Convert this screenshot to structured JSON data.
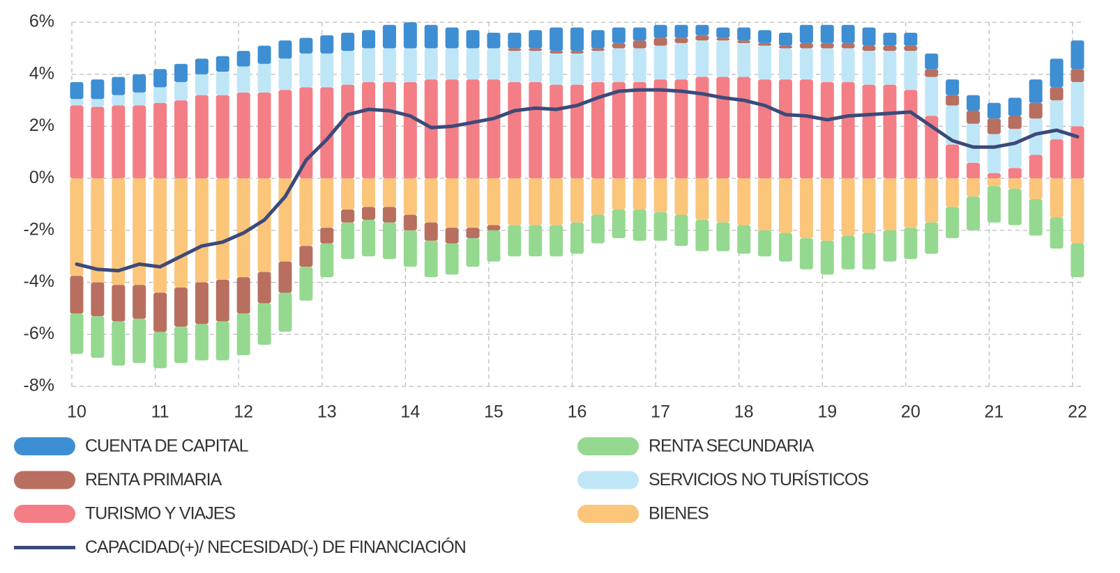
{
  "chart_data": {
    "type": "bar",
    "stacked": true,
    "categories": [
      "10",
      null,
      null,
      null,
      "11",
      null,
      null,
      null,
      "12",
      null,
      null,
      null,
      "13",
      null,
      null,
      null,
      "14",
      null,
      null,
      null,
      "15",
      null,
      null,
      null,
      "16",
      null,
      null,
      null,
      "17",
      null,
      null,
      null,
      "18",
      null,
      null,
      null,
      "19",
      null,
      null,
      null,
      "20",
      null,
      null,
      null,
      "21",
      null,
      null,
      null,
      "22"
    ],
    "ylim": [
      -8,
      6
    ],
    "yticks": [
      {
        "value": 6,
        "label": "6%"
      },
      {
        "value": 4,
        "label": "4%"
      },
      {
        "value": 2,
        "label": "2%"
      },
      {
        "value": 0,
        "label": "0%"
      },
      {
        "value": -2,
        "label": "-2%"
      },
      {
        "value": -4,
        "label": "-4%"
      },
      {
        "value": -6,
        "label": "-6%"
      },
      {
        "value": -8,
        "label": "-8%"
      }
    ],
    "grid": true,
    "series": [
      {
        "name": "CUENTA DE CAPITAL",
        "color": "#3e8ed3",
        "values": [
          0.65,
          0.75,
          0.7,
          0.7,
          0.7,
          0.7,
          0.6,
          0.6,
          0.6,
          0.7,
          0.7,
          0.6,
          0.7,
          0.7,
          0.7,
          0.9,
          1.0,
          0.9,
          0.8,
          0.7,
          0.6,
          0.6,
          0.7,
          0.9,
          0.9,
          0.7,
          0.6,
          0.5,
          0.5,
          0.5,
          0.4,
          0.4,
          0.5,
          0.5,
          0.5,
          0.7,
          0.7,
          0.7,
          0.7,
          0.5,
          0.5,
          0.6,
          0.6,
          0.6,
          0.6,
          0.7,
          0.9,
          1.1,
          1.1
        ]
      },
      {
        "name": "RENTA SECUNDARIA",
        "color": "#94d98f",
        "values": [
          -1.55,
          -1.6,
          -1.7,
          -1.7,
          -1.4,
          -1.4,
          -1.4,
          -1.5,
          -1.6,
          -1.6,
          -1.5,
          -1.3,
          -1.3,
          -1.4,
          -1.4,
          -1.4,
          -1.4,
          -1.4,
          -1.2,
          -1.1,
          -1.2,
          -1.2,
          -1.2,
          -1.2,
          -1.2,
          -1.1,
          -1.1,
          -1.2,
          -1.1,
          -1.2,
          -1.2,
          -1.1,
          -1.1,
          -1.0,
          -1.1,
          -1.2,
          -1.3,
          -1.3,
          -1.4,
          -1.2,
          -1.2,
          -1.2,
          -1.2,
          -1.3,
          -1.4,
          -1.4,
          -1.4,
          -1.2,
          -1.3
        ]
      },
      {
        "name": "RENTA PRIMARIA",
        "color": "#b86f60",
        "values": [
          -1.45,
          -1.3,
          -1.4,
          -1.3,
          -1.5,
          -1.5,
          -1.6,
          -1.6,
          -1.4,
          -1.2,
          -1.2,
          -0.8,
          -0.6,
          -0.5,
          -0.5,
          -0.6,
          -0.6,
          -0.7,
          -0.6,
          -0.4,
          -0.2,
          0.1,
          0.1,
          0.1,
          0.1,
          0.1,
          0.2,
          0.3,
          0.3,
          0.2,
          0.2,
          0.1,
          0.1,
          0.1,
          0.1,
          0.2,
          0.2,
          0.2,
          0.2,
          0.2,
          0.2,
          0.3,
          0.4,
          0.5,
          0.6,
          0.5,
          0.6,
          0.5,
          0.5
        ]
      },
      {
        "name": "SERVICIOS NO TURÍSTICOS",
        "color": "#bfe6f7",
        "values": [
          0.25,
          0.3,
          0.4,
          0.5,
          0.6,
          0.7,
          0.8,
          0.9,
          1.0,
          1.1,
          1.2,
          1.3,
          1.3,
          1.3,
          1.3,
          1.3,
          1.3,
          1.2,
          1.2,
          1.2,
          1.2,
          1.2,
          1.2,
          1.2,
          1.2,
          1.2,
          1.3,
          1.3,
          1.3,
          1.4,
          1.4,
          1.4,
          1.3,
          1.3,
          1.2,
          1.2,
          1.3,
          1.3,
          1.3,
          1.3,
          1.5,
          1.5,
          1.5,
          1.5,
          1.5,
          1.5,
          1.4,
          1.5,
          1.7
        ]
      },
      {
        "name": "TURISMO Y VIAJES",
        "color": "#f47e86",
        "values": [
          2.8,
          2.75,
          2.8,
          2.8,
          2.9,
          3.0,
          3.2,
          3.2,
          3.3,
          3.3,
          3.4,
          3.5,
          3.5,
          3.6,
          3.7,
          3.7,
          3.7,
          3.8,
          3.8,
          3.8,
          3.8,
          3.7,
          3.7,
          3.6,
          3.6,
          3.7,
          3.7,
          3.7,
          3.8,
          3.8,
          3.9,
          3.9,
          3.9,
          3.8,
          3.8,
          3.8,
          3.7,
          3.7,
          3.6,
          3.6,
          3.4,
          2.4,
          1.3,
          0.6,
          0.2,
          0.4,
          0.9,
          1.5,
          2.0
        ]
      },
      {
        "name": "BIENES",
        "color": "#fbc57a",
        "values": [
          -3.75,
          -4.0,
          -4.1,
          -4.1,
          -4.4,
          -4.2,
          -4.0,
          -3.9,
          -3.8,
          -3.6,
          -3.2,
          -2.6,
          -1.9,
          -1.2,
          -1.1,
          -1.1,
          -1.4,
          -1.7,
          -1.9,
          -1.9,
          -1.8,
          -1.8,
          -1.8,
          -1.8,
          -1.7,
          -1.4,
          -1.2,
          -1.2,
          -1.3,
          -1.4,
          -1.6,
          -1.7,
          -1.8,
          -2.0,
          -2.1,
          -2.3,
          -2.4,
          -2.2,
          -2.1,
          -2.0,
          -1.9,
          -1.7,
          -1.1,
          -0.7,
          -0.3,
          -0.4,
          -0.8,
          -1.5,
          -2.5
        ]
      },
      {
        "name": "CAPACIDAD(+)/ NECESIDAD(-) DE FINANCIACIÓN",
        "color": "#3c4a7a",
        "type": "line",
        "values": [
          -3.3,
          -3.5,
          -3.55,
          -3.3,
          -3.4,
          -3.0,
          -2.6,
          -2.45,
          -2.1,
          -1.6,
          -0.7,
          0.7,
          1.5,
          2.45,
          2.65,
          2.6,
          2.4,
          1.95,
          2.0,
          2.15,
          2.3,
          2.6,
          2.7,
          2.65,
          2.8,
          3.1,
          3.35,
          3.4,
          3.4,
          3.35,
          3.25,
          3.1,
          3.0,
          2.8,
          2.45,
          2.4,
          2.25,
          2.4,
          2.45,
          2.5,
          2.55,
          2.0,
          1.45,
          1.2,
          1.2,
          1.35,
          1.7,
          1.85,
          1.6
        ]
      }
    ]
  }
}
